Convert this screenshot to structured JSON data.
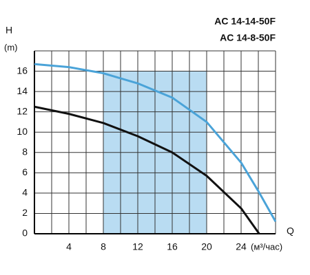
{
  "chart_data": {
    "type": "line",
    "y_axis_label": "H",
    "y_axis_unit": "(m)",
    "x_axis_label": "Q",
    "x_axis_unit": "(м³/час)",
    "xlim": [
      0,
      28
    ],
    "ylim": [
      0,
      18
    ],
    "xticks": [
      4,
      8,
      12,
      16,
      20,
      24
    ],
    "x_minor_gridlines": [
      2,
      6,
      10,
      14,
      18,
      22,
      26
    ],
    "yticks": [
      0,
      2,
      4,
      6,
      8,
      10,
      12,
      14,
      16
    ],
    "grid": true,
    "working_range": {
      "x": [
        8,
        20
      ],
      "y": [
        0,
        16
      ],
      "color": "#b9dcf2"
    },
    "series": [
      {
        "name": "AC 14-14-50F",
        "color": "#4aa3d8",
        "x": [
          0,
          4,
          8,
          12,
          16,
          20,
          24,
          26,
          28
        ],
        "values": [
          16.7,
          16.4,
          15.8,
          14.8,
          13.4,
          11,
          7,
          4.2,
          1.2
        ]
      },
      {
        "name": "AC 14-8-50F",
        "color": "#111111",
        "x": [
          0,
          4,
          8,
          12,
          16,
          20,
          24,
          26.1
        ],
        "values": [
          12.5,
          11.8,
          10.9,
          9.6,
          8,
          5.7,
          2.5,
          0
        ]
      }
    ]
  }
}
